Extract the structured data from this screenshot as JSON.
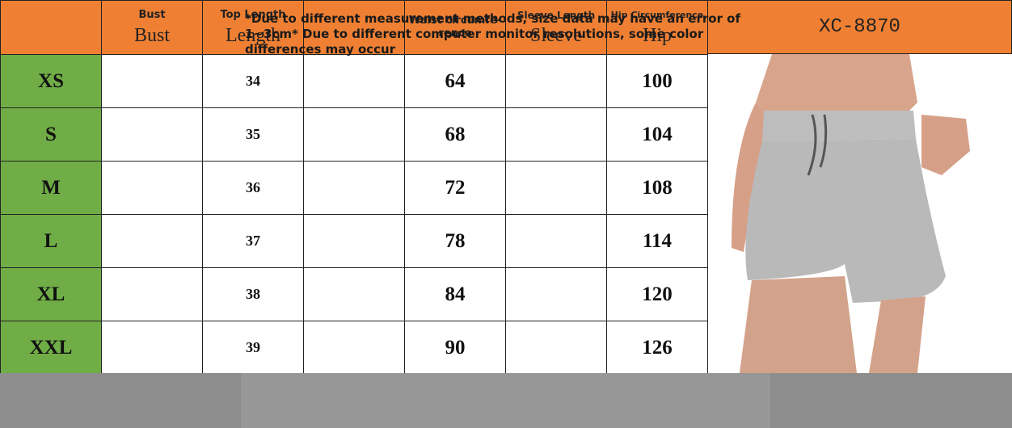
{
  "header": {
    "product_code": "XC-8870",
    "columns": [
      {
        "label": "Bust",
        "sublabel": "Bust"
      },
      {
        "label": "Top Length",
        "sublabel": "Length"
      },
      {
        "label": "Waist circumfe-rence"
      },
      {
        "label": "Sleeve Length",
        "sublabel": "Sleeve"
      },
      {
        "label": "Hip Circumference",
        "sublabel": "Hip"
      }
    ]
  },
  "table": {
    "rows": [
      {
        "size": "XS",
        "top_length": 34,
        "waist": 64,
        "hip": 100
      },
      {
        "size": "S",
        "top_length": 35,
        "waist": 68,
        "hip": 104
      },
      {
        "size": "M",
        "top_length": 36,
        "waist": 72,
        "hip": 108
      },
      {
        "size": "L",
        "top_length": 37,
        "waist": 78,
        "hip": 114
      },
      {
        "size": "XL",
        "top_length": 38,
        "waist": 84,
        "hip": 120
      },
      {
        "size": "XXL",
        "top_length": 39,
        "waist": 90,
        "hip": 126
      }
    ]
  },
  "note": "*Due to different measurement methods, size data may have an error of 1~3cm* Due to different computer monitor resolutions, some color differences may occur"
}
